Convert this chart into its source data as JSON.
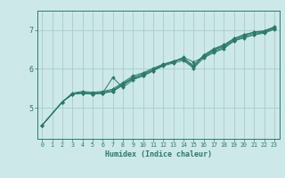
{
  "title": "",
  "xlabel": "Humidex (Indice chaleur)",
  "ylabel": "",
  "bg_color": "#cce8e8",
  "line_color": "#2a7a6a",
  "grid_color": "#aacccc",
  "axis_color": "#2a7a6a",
  "tick_color": "#2a7a6a",
  "xlim": [
    -0.5,
    23.5
  ],
  "ylim": [
    4.2,
    7.5
  ],
  "xticks": [
    0,
    1,
    2,
    3,
    4,
    5,
    6,
    7,
    8,
    9,
    10,
    11,
    12,
    13,
    14,
    15,
    16,
    17,
    18,
    19,
    20,
    21,
    22,
    23
  ],
  "yticks": [
    5,
    6,
    7
  ],
  "lines": [
    {
      "x": [
        0,
        2,
        3,
        4,
        5,
        6,
        7,
        8,
        9,
        10,
        11,
        12,
        13,
        14,
        15,
        16,
        17,
        18,
        19,
        20,
        21,
        22,
        23
      ],
      "y": [
        4.55,
        5.15,
        5.35,
        5.38,
        5.35,
        5.38,
        5.42,
        5.58,
        5.75,
        5.82,
        5.95,
        6.08,
        6.15,
        6.22,
        6.02,
        6.28,
        6.42,
        6.52,
        6.72,
        6.8,
        6.88,
        6.92,
        7.02
      ]
    },
    {
      "x": [
        0,
        2,
        3,
        4,
        5,
        6,
        7,
        8,
        9,
        10,
        11,
        12,
        13,
        14,
        15,
        16,
        17,
        18,
        19,
        20,
        21,
        22,
        23
      ],
      "y": [
        4.55,
        5.15,
        5.38,
        5.42,
        5.4,
        5.42,
        5.48,
        5.65,
        5.82,
        5.9,
        6.02,
        6.12,
        6.18,
        6.28,
        6.08,
        6.35,
        6.52,
        6.62,
        6.78,
        6.88,
        6.95,
        6.98,
        7.08
      ]
    },
    {
      "x": [
        0,
        2,
        3,
        4,
        5,
        6,
        7,
        8,
        9,
        10,
        11,
        12,
        13,
        14,
        15,
        16,
        17,
        18,
        19,
        20,
        21,
        22,
        23
      ],
      "y": [
        4.55,
        5.15,
        5.35,
        5.38,
        5.35,
        5.38,
        5.78,
        5.52,
        5.72,
        5.82,
        5.95,
        6.1,
        6.18,
        6.3,
        6.18,
        6.3,
        6.45,
        6.55,
        6.72,
        6.82,
        6.88,
        6.95,
        7.05
      ]
    },
    {
      "x": [
        0,
        2,
        3,
        4,
        5,
        6,
        7,
        8,
        9,
        10,
        11,
        12,
        13,
        14,
        15,
        16,
        17,
        18,
        19,
        20,
        21,
        22,
        23
      ],
      "y": [
        4.55,
        5.15,
        5.35,
        5.4,
        5.38,
        5.4,
        5.45,
        5.62,
        5.78,
        5.85,
        5.98,
        6.1,
        6.2,
        6.25,
        6.05,
        6.32,
        6.48,
        6.58,
        6.75,
        6.85,
        6.92,
        6.95,
        7.05
      ]
    },
    {
      "x": [
        0,
        2,
        3,
        4,
        5,
        6,
        7,
        8,
        9,
        10,
        11,
        12,
        13,
        14,
        15,
        16,
        17,
        18,
        19,
        20,
        21,
        22,
        23
      ],
      "y": [
        4.55,
        5.15,
        5.35,
        5.38,
        5.35,
        5.38,
        5.42,
        5.6,
        5.76,
        5.88,
        5.98,
        6.12,
        6.2,
        6.28,
        6.08,
        6.35,
        6.5,
        6.6,
        6.78,
        6.88,
        6.94,
        6.98,
        7.08
      ]
    }
  ]
}
